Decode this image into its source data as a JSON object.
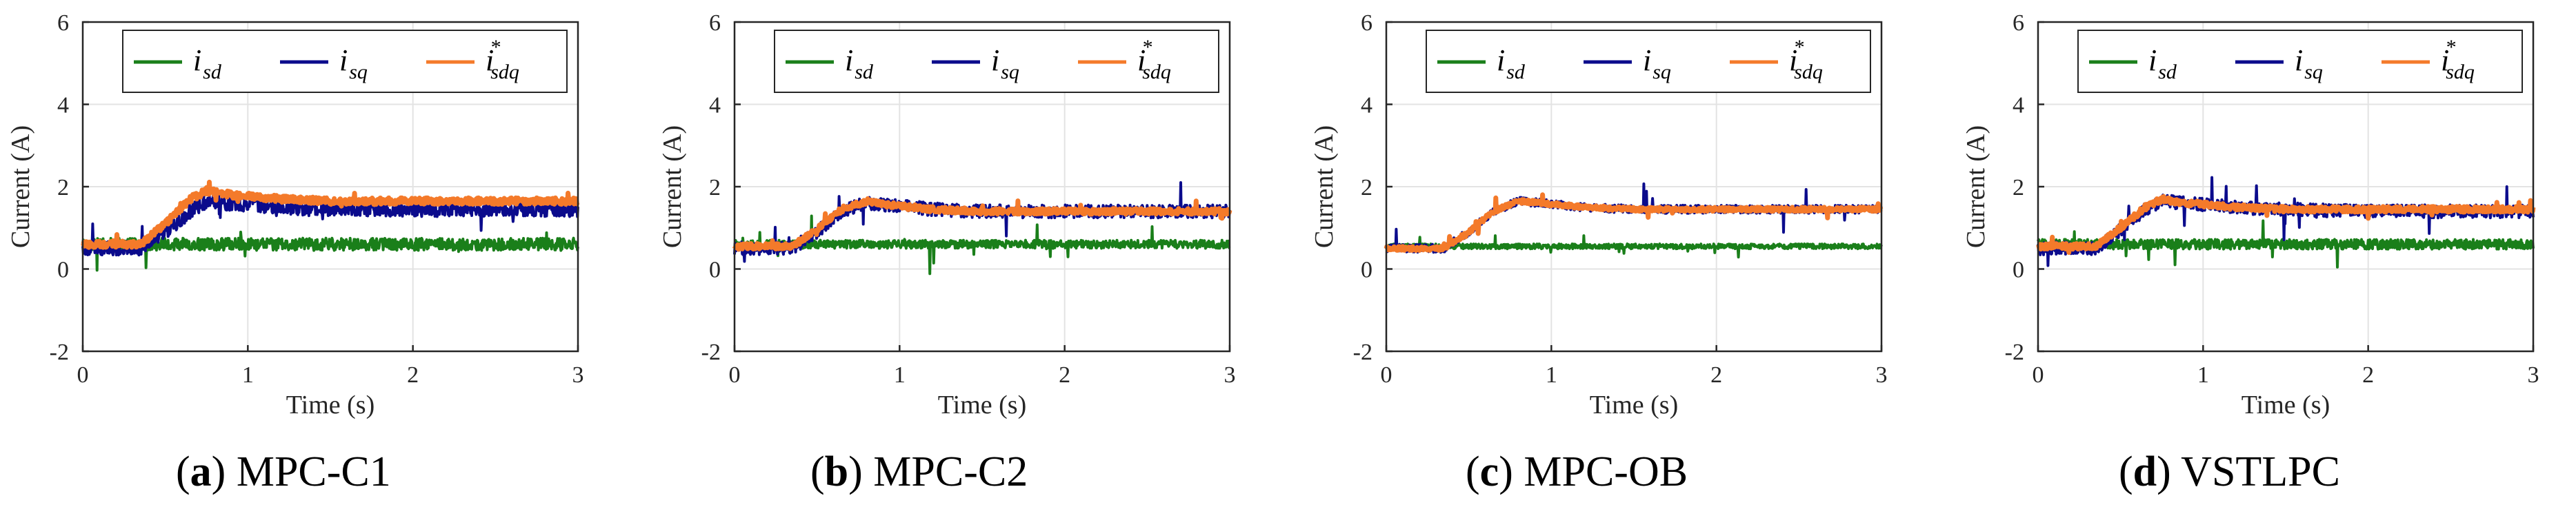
{
  "chart_data": [
    {
      "type": "line",
      "panel_letter": "a",
      "panel_caption": "MPC-C1",
      "xlabel": "Time (s)",
      "ylabel": "Current (A)",
      "xlim": [
        0,
        3
      ],
      "ylim": [
        -2,
        6
      ],
      "xticks": [
        "0",
        "1",
        "2",
        "3"
      ],
      "yticks": [
        "-2",
        "0",
        "2",
        "4",
        "6"
      ],
      "grid": true,
      "legend_position": "top",
      "series": [
        {
          "name": "i_sd",
          "label_main": "i",
          "label_sub": "sd",
          "label_sup": "",
          "color": "#1a7f1a",
          "x": [
            0,
            0.5,
            1.0,
            1.5,
            2.0,
            2.5,
            3.0
          ],
          "values": [
            0.6,
            0.6,
            0.6,
            0.6,
            0.6,
            0.6,
            0.6
          ],
          "noise": 0.15
        },
        {
          "name": "i_sq",
          "label_main": "i",
          "label_sub": "sq",
          "label_sup": "",
          "color": "#0b0b8c",
          "x": [
            0,
            0.35,
            0.5,
            0.65,
            0.75,
            0.9,
            1.2,
            1.5,
            2.0,
            2.5,
            3.0
          ],
          "values": [
            0.5,
            0.5,
            0.9,
            1.4,
            1.65,
            1.6,
            1.5,
            1.45,
            1.45,
            1.45,
            1.45
          ],
          "noise": 0.18
        },
        {
          "name": "i*_sdq",
          "label_main": "i",
          "label_sub": "sdq",
          "label_sup": "*",
          "color": "#f47a2a",
          "x": [
            0,
            0.35,
            0.5,
            0.65,
            0.75,
            0.9,
            1.2,
            1.5,
            2.0,
            2.5,
            3.0
          ],
          "values": [
            0.6,
            0.6,
            1.1,
            1.7,
            1.9,
            1.8,
            1.7,
            1.65,
            1.65,
            1.65,
            1.65
          ],
          "noise": 0.08
        }
      ]
    },
    {
      "type": "line",
      "panel_letter": "b",
      "panel_caption": "MPC-C2",
      "xlabel": "Time (s)",
      "ylabel": "Current (A)",
      "xlim": [
        0,
        3
      ],
      "ylim": [
        -2,
        6
      ],
      "xticks": [
        "0",
        "1",
        "2",
        "3"
      ],
      "yticks": [
        "-2",
        "0",
        "2",
        "4",
        "6"
      ],
      "grid": true,
      "legend_position": "top",
      "series": [
        {
          "name": "i_sd",
          "label_main": "i",
          "label_sub": "sd",
          "label_sup": "",
          "color": "#1a7f1a",
          "x": [
            0,
            0.5,
            1.0,
            1.5,
            2.0,
            2.5,
            3.0
          ],
          "values": [
            0.6,
            0.6,
            0.6,
            0.6,
            0.6,
            0.6,
            0.6
          ],
          "noise": 0.1
        },
        {
          "name": "i_sq",
          "label_main": "i",
          "label_sub": "sq",
          "label_sup": "",
          "color": "#0b0b8c",
          "x": [
            0,
            0.35,
            0.5,
            0.65,
            0.8,
            0.95,
            1.2,
            1.5,
            2.0,
            2.5,
            3.0
          ],
          "values": [
            0.5,
            0.5,
            0.9,
            1.4,
            1.6,
            1.55,
            1.45,
            1.4,
            1.4,
            1.4,
            1.4
          ],
          "noise": 0.16
        },
        {
          "name": "i*_sdq",
          "label_main": "i",
          "label_sub": "sdq",
          "label_sup": "*",
          "color": "#f47a2a",
          "x": [
            0,
            0.35,
            0.5,
            0.65,
            0.8,
            0.95,
            1.2,
            1.5,
            2.0,
            2.5,
            3.0
          ],
          "values": [
            0.55,
            0.55,
            0.95,
            1.45,
            1.65,
            1.55,
            1.45,
            1.4,
            1.4,
            1.4,
            1.4
          ],
          "noise": 0.07
        }
      ]
    },
    {
      "type": "line",
      "panel_letter": "c",
      "panel_caption": "MPC-OB",
      "xlabel": "Time (s)",
      "ylabel": "Current (A)",
      "xlim": [
        0,
        3
      ],
      "ylim": [
        -2,
        6
      ],
      "xticks": [
        "0",
        "1",
        "2",
        "3"
      ],
      "yticks": [
        "-2",
        "0",
        "2",
        "4",
        "6"
      ],
      "grid": true,
      "legend_position": "top",
      "series": [
        {
          "name": "i_sd",
          "label_main": "i",
          "label_sub": "sd",
          "label_sup": "",
          "color": "#1a7f1a",
          "x": [
            0,
            0.5,
            1.0,
            1.5,
            2.0,
            2.5,
            3.0
          ],
          "values": [
            0.55,
            0.55,
            0.55,
            0.55,
            0.55,
            0.55,
            0.55
          ],
          "noise": 0.06
        },
        {
          "name": "i_sq",
          "label_main": "i",
          "label_sub": "sq",
          "label_sup": "",
          "color": "#0b0b8c",
          "x": [
            0,
            0.35,
            0.5,
            0.65,
            0.8,
            0.95,
            1.2,
            1.5,
            2.0,
            2.5,
            3.0
          ],
          "values": [
            0.5,
            0.5,
            0.9,
            1.4,
            1.65,
            1.6,
            1.5,
            1.45,
            1.45,
            1.45,
            1.45
          ],
          "noise": 0.1
        },
        {
          "name": "i*_sdq",
          "label_main": "i",
          "label_sub": "sdq",
          "label_sup": "*",
          "color": "#f47a2a",
          "x": [
            0,
            0.35,
            0.5,
            0.65,
            0.8,
            0.95,
            1.2,
            1.5,
            2.0,
            2.5,
            3.0
          ],
          "values": [
            0.5,
            0.5,
            0.9,
            1.4,
            1.65,
            1.6,
            1.5,
            1.45,
            1.45,
            1.45,
            1.45
          ],
          "noise": 0.05
        }
      ]
    },
    {
      "type": "line",
      "panel_letter": "d",
      "panel_caption": "VSTLPC",
      "xlabel": "Time (s)",
      "ylabel": "Current (A)",
      "xlim": [
        0,
        3
      ],
      "ylim": [
        -2,
        6
      ],
      "xticks": [
        "0",
        "1",
        "2",
        "3"
      ],
      "yticks": [
        "-2",
        "0",
        "2",
        "4",
        "6"
      ],
      "grid": true,
      "legend_position": "top",
      "series": [
        {
          "name": "i_sd",
          "label_main": "i",
          "label_sub": "sd",
          "label_sup": "",
          "color": "#1a7f1a",
          "x": [
            0,
            0.5,
            1.0,
            1.5,
            2.0,
            2.5,
            3.0
          ],
          "values": [
            0.6,
            0.6,
            0.6,
            0.6,
            0.6,
            0.6,
            0.6
          ],
          "noise": 0.12
        },
        {
          "name": "i_sq",
          "label_main": "i",
          "label_sub": "sq",
          "label_sup": "",
          "color": "#0b0b8c",
          "x": [
            0,
            0.35,
            0.5,
            0.65,
            0.75,
            0.9,
            1.2,
            1.5,
            2.0,
            2.5,
            3.0
          ],
          "values": [
            0.5,
            0.5,
            0.95,
            1.45,
            1.65,
            1.6,
            1.5,
            1.45,
            1.4,
            1.4,
            1.4
          ],
          "noise": 0.16
        },
        {
          "name": "i*_sdq",
          "label_main": "i",
          "label_sub": "sdq",
          "label_sup": "*",
          "color": "#f47a2a",
          "x": [
            0,
            0.35,
            0.5,
            0.65,
            0.75,
            0.9,
            1.2,
            1.5,
            2.0,
            2.5,
            3.0
          ],
          "values": [
            0.55,
            0.55,
            1.0,
            1.5,
            1.7,
            1.6,
            1.5,
            1.45,
            1.45,
            1.45,
            1.45
          ],
          "noise": 0.07
        }
      ]
    }
  ]
}
